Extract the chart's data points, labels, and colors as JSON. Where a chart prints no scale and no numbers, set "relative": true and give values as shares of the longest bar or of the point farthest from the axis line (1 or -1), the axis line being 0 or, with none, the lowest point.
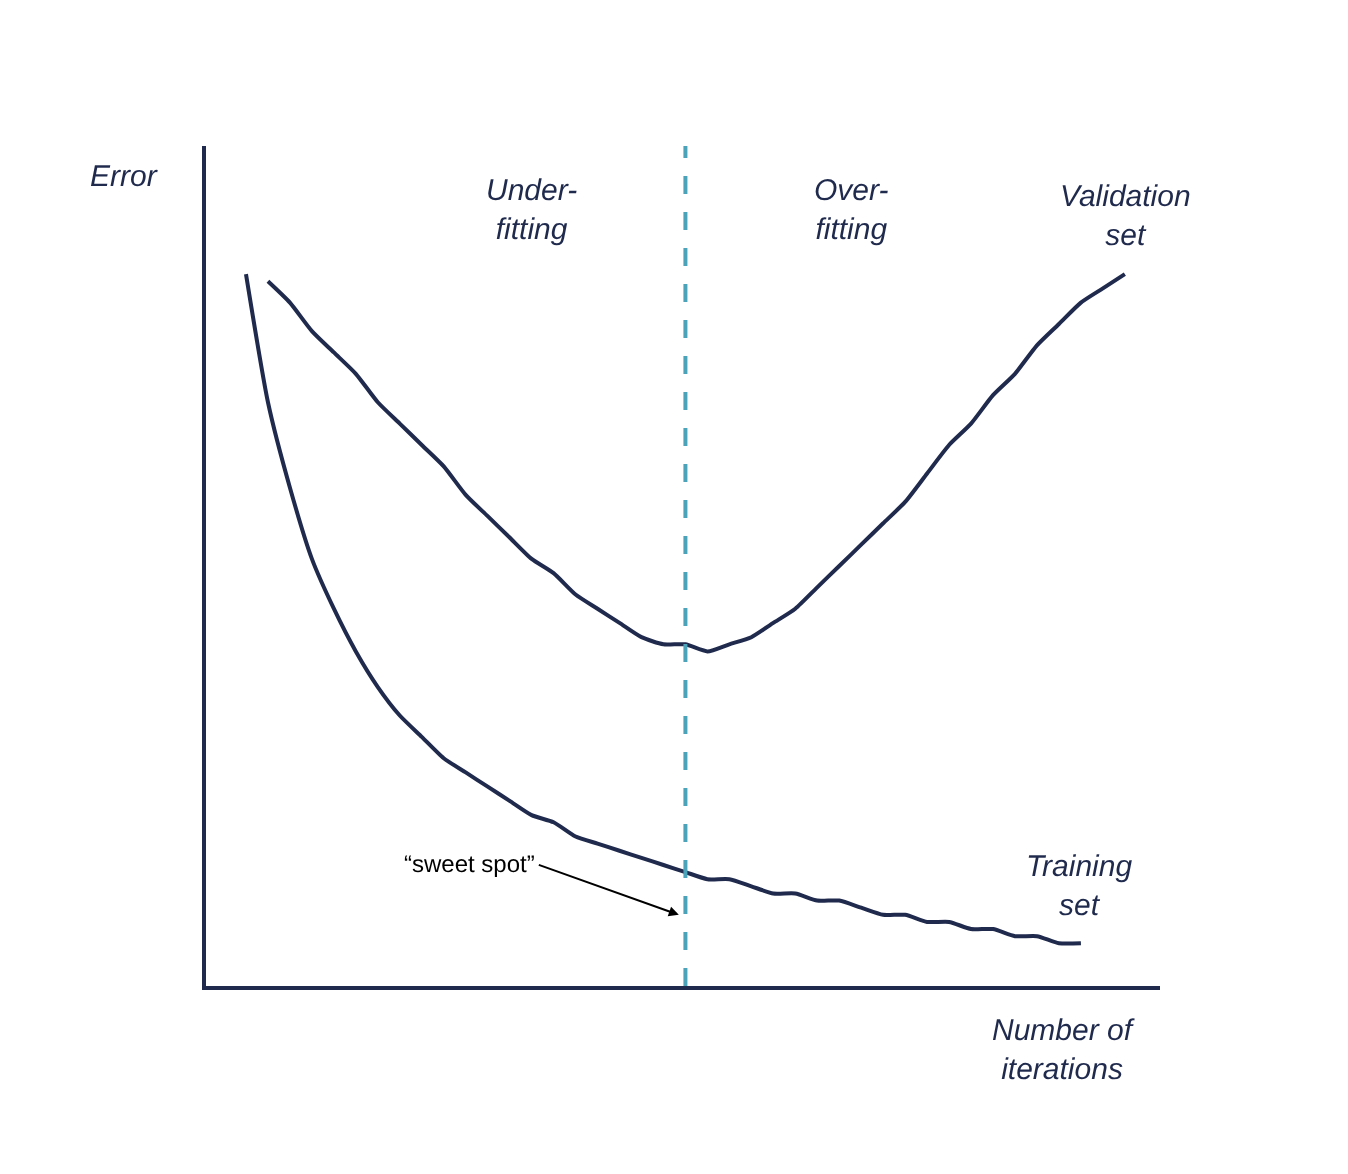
{
  "chart_data": {
    "type": "line",
    "relative": true,
    "xlabel": "Number of\niterations",
    "ylabel": "Error",
    "categories": [
      null,
      null,
      null,
      null,
      null,
      null,
      null,
      null,
      null,
      null,
      null,
      null,
      null,
      null,
      null,
      null,
      null,
      null,
      null,
      null,
      null,
      null,
      null,
      null,
      null,
      null,
      null,
      null,
      null,
      null,
      null,
      null,
      null,
      null,
      null,
      null,
      null,
      null,
      null,
      null,
      null
    ],
    "series": [
      {
        "name": "Validation\nset",
        "color": "#1f2a4d",
        "values": [
          null,
          0.99,
          0.96,
          0.92,
          0.89,
          0.86,
          0.82,
          0.79,
          0.76,
          0.73,
          0.69,
          0.66,
          0.63,
          0.6,
          0.58,
          0.55,
          0.53,
          0.51,
          0.49,
          0.48,
          0.48,
          0.47,
          0.48,
          0.49,
          0.51,
          0.53,
          0.56,
          0.59,
          0.62,
          0.65,
          0.68,
          0.72,
          0.76,
          0.79,
          0.83,
          0.86,
          0.9,
          0.93,
          0.96,
          0.98,
          1.0
        ]
      },
      {
        "name": "Training\nset",
        "color": "#1f2a4d",
        "values": [
          1.0,
          0.82,
          0.7,
          0.6,
          0.53,
          0.47,
          0.42,
          0.38,
          0.35,
          0.32,
          0.3,
          0.28,
          0.26,
          0.24,
          0.23,
          0.21,
          0.2,
          0.19,
          0.18,
          0.17,
          0.16,
          0.15,
          0.15,
          0.14,
          0.13,
          0.13,
          0.12,
          0.12,
          0.11,
          0.1,
          0.1,
          0.09,
          0.09,
          0.08,
          0.08,
          0.07,
          0.07,
          0.06,
          0.06,
          null,
          null
        ]
      }
    ],
    "annotations": [
      "Under-\nfitting",
      "Over-\nfitting",
      "“sweet spot”"
    ],
    "legend": false,
    "marker": "none",
    "line_style": "solid"
  }
}
